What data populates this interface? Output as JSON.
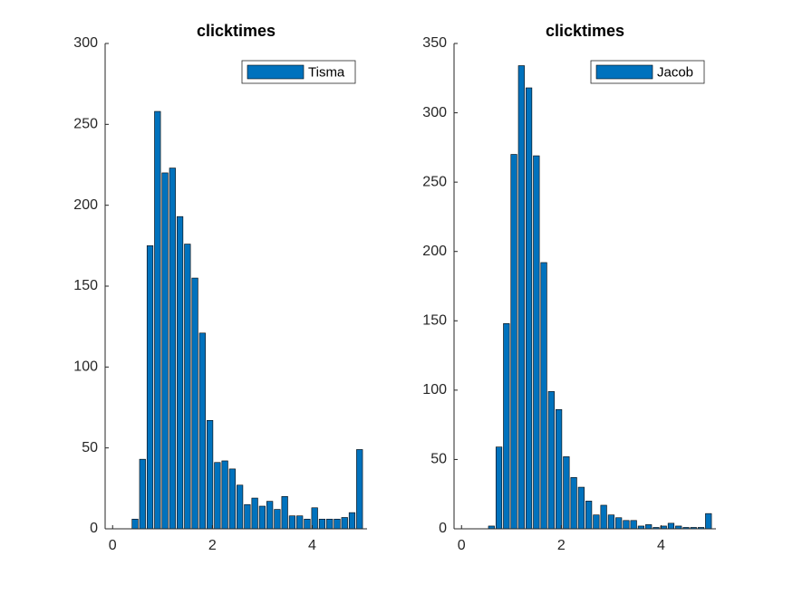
{
  "chart_data": [
    {
      "type": "bar",
      "title": "clicktimes",
      "x": [
        0,
        0.15,
        0.3,
        0.45,
        0.6,
        0.75,
        0.9,
        1.05,
        1.2,
        1.35,
        1.5,
        1.65,
        1.8,
        1.95,
        2.1,
        2.25,
        2.4,
        2.55,
        2.7,
        2.85,
        3,
        3.15,
        3.3,
        3.45,
        3.6,
        3.75,
        3.9,
        4.05,
        4.2,
        4.35,
        4.5,
        4.65,
        4.8,
        4.95
      ],
      "series": [
        {
          "name": "Tisma",
          "color": "#0072bd",
          "values": [
            0,
            0,
            0,
            6,
            43,
            175,
            258,
            220,
            223,
            193,
            176,
            155,
            121,
            67,
            41,
            42,
            37,
            27,
            15,
            19,
            14,
            17,
            12,
            20,
            8,
            8,
            6,
            13,
            6,
            6,
            6,
            7,
            10,
            49
          ]
        }
      ],
      "xlim": [
        -0.15,
        5.1
      ],
      "xticks": [
        0,
        2,
        4
      ],
      "ylim": [
        0,
        300
      ],
      "yticks": [
        0,
        50,
        100,
        150,
        200,
        250,
        300
      ],
      "legend": "upper right"
    },
    {
      "type": "bar",
      "title": "clicktimes",
      "x": [
        0,
        0.15,
        0.3,
        0.45,
        0.6,
        0.75,
        0.9,
        1.05,
        1.2,
        1.35,
        1.5,
        1.65,
        1.8,
        1.95,
        2.1,
        2.25,
        2.4,
        2.55,
        2.7,
        2.85,
        3,
        3.15,
        3.3,
        3.45,
        3.6,
        3.75,
        3.9,
        4.05,
        4.2,
        4.35,
        4.5,
        4.65,
        4.8,
        4.95
      ],
      "series": [
        {
          "name": "Jacob",
          "color": "#0072bd",
          "values": [
            0,
            0,
            0,
            0,
            2,
            59,
            148,
            270,
            334,
            318,
            269,
            192,
            99,
            86,
            52,
            37,
            30,
            20,
            10,
            17,
            10,
            8,
            6,
            6,
            2,
            3,
            1,
            2,
            4,
            2,
            1,
            1,
            1,
            11
          ]
        }
      ],
      "xlim": [
        -0.15,
        5.1
      ],
      "xticks": [
        0,
        2,
        4
      ],
      "ylim": [
        0,
        350
      ],
      "yticks": [
        0,
        50,
        100,
        150,
        200,
        250,
        300,
        350
      ],
      "legend": "upper right"
    }
  ]
}
